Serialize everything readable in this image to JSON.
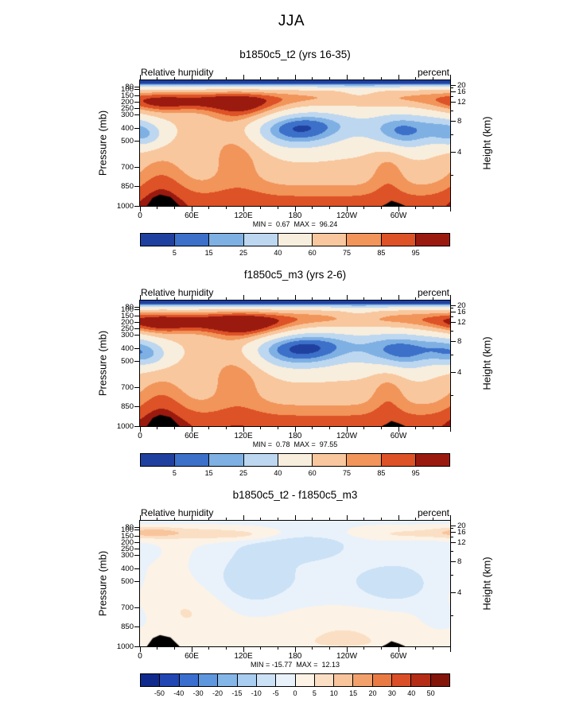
{
  "chart_data": {
    "type": "heatmap",
    "title": "JJA",
    "variable": "Relative humidity",
    "units": "percent",
    "representation": "gaussian-blob approximation of filled contour fields",
    "axes": {
      "x_range": [
        0,
        360
      ],
      "x_ticks": [
        {
          "lon": 0,
          "label": "0"
        },
        {
          "lon": 60,
          "label": "60E"
        },
        {
          "lon": 120,
          "label": "120E"
        },
        {
          "lon": 180,
          "label": "180"
        },
        {
          "lon": 240,
          "label": "120W"
        },
        {
          "lon": 300,
          "label": "60W"
        }
      ],
      "x_minor_step": 20,
      "y_left_label": "Pressure (mb)",
      "y_left_ticks": [
        80,
        100,
        150,
        200,
        250,
        300,
        400,
        500,
        700,
        850,
        1000
      ],
      "y_right_label": "Height (km)",
      "y_right_ticks": [
        20,
        16,
        12,
        8,
        4
      ],
      "y_right_minor_ticks": [
        18,
        14,
        10,
        6,
        2
      ],
      "pressure_range_mb": [
        30,
        1000
      ],
      "scale_height_km": 7.5,
      "grid": false
    },
    "panels": [
      {
        "id": "b1850c5_t2",
        "title": "b1850c5_t2 (yrs 16-35)",
        "left_header": "Relative humidity",
        "right_header": "percent",
        "min": 0.67,
        "max": 96.24,
        "stats_text": "MIN =  0.67  MAX =  96.24",
        "colorbar": {
          "labels": [
            5,
            15,
            25,
            40,
            60,
            75,
            85,
            95
          ],
          "colors": [
            "#20409f",
            "#3c70c9",
            "#7fb0e3",
            "#bdd7f0",
            "#f8eedd",
            "#f8c79e",
            "#f1955a",
            "#dd5226",
            "#9a1a10"
          ]
        },
        "field": {
          "base": 62,
          "blobs": [
            {
              "x": 180,
              "p": 15,
              "sx": 9999,
              "sp": 40,
              "a": -95
            },
            {
              "x": 240,
              "p": 165,
              "sx": 130,
              "sp": 38,
              "a": 12
            },
            {
              "x": 70,
              "p": 195,
              "sx": 70,
              "sp": 50,
              "a": 30
            },
            {
              "x": 125,
              "p": 265,
              "sx": 33,
              "sp": 70,
              "a": 24
            },
            {
              "x": 20,
              "p": 230,
              "sx": 25,
              "sp": 60,
              "a": 14
            },
            {
              "x": 183,
              "p": 420,
              "sx": 42,
              "sp": 105,
              "a": -50
            },
            {
              "x": 212,
              "p": 360,
              "sx": 55,
              "sp": 70,
              "a": -14
            },
            {
              "x": 302,
              "p": 430,
              "sx": 26,
              "sp": 105,
              "a": -46
            },
            {
              "x": 350,
              "p": 400,
              "sx": 22,
              "sp": 85,
              "a": -26
            },
            {
              "x": 8,
              "p": 460,
              "sx": 16,
              "sp": 70,
              "a": -24
            },
            {
              "x": 180,
              "p": 1030,
              "sx": 9999,
              "sp": 145,
              "a": 30
            },
            {
              "x": 25,
              "p": 800,
              "sx": 22,
              "sp": 170,
              "a": 18
            },
            {
              "x": 113,
              "p": 560,
              "sx": 24,
              "sp": 220,
              "a": 20
            },
            {
              "x": 288,
              "p": 700,
              "sx": 15,
              "sp": 160,
              "a": 16
            },
            {
              "x": 255,
              "p": 140,
              "sx": 18,
              "sp": 30,
              "a": -12
            }
          ]
        },
        "topography": [
          {
            "from": 8,
            "to": 46,
            "top_p": 912
          },
          {
            "from": 281,
            "to": 308,
            "top_p": 960
          }
        ]
      },
      {
        "id": "f1850c5_m3",
        "title": "f1850c5_m3 (yrs 2-6)",
        "left_header": "Relative humidity",
        "right_header": "percent",
        "min": 0.78,
        "max": 97.55,
        "stats_text": "MIN =  0.78  MAX =  97.55",
        "colorbar": {
          "labels": [
            5,
            15,
            25,
            40,
            60,
            75,
            85,
            95
          ],
          "colors": [
            "#20409f",
            "#3c70c9",
            "#7fb0e3",
            "#bdd7f0",
            "#f8eedd",
            "#f8c79e",
            "#f1955a",
            "#dd5226",
            "#9a1a10"
          ]
        },
        "field": {
          "base": 62,
          "blobs": [
            {
              "x": 180,
              "p": 15,
              "sx": 9999,
              "sp": 40,
              "a": -95
            },
            {
              "x": 235,
              "p": 165,
              "sx": 130,
              "sp": 38,
              "a": 13
            },
            {
              "x": 65,
              "p": 200,
              "sx": 85,
              "sp": 52,
              "a": 32
            },
            {
              "x": 130,
              "p": 255,
              "sx": 35,
              "sp": 70,
              "a": 26
            },
            {
              "x": 20,
              "p": 230,
              "sx": 25,
              "sp": 60,
              "a": 15
            },
            {
              "x": 185,
              "p": 420,
              "sx": 46,
              "sp": 105,
              "a": -52
            },
            {
              "x": 215,
              "p": 360,
              "sx": 55,
              "sp": 70,
              "a": -15
            },
            {
              "x": 300,
              "p": 430,
              "sx": 28,
              "sp": 110,
              "a": -48
            },
            {
              "x": 350,
              "p": 400,
              "sx": 22,
              "sp": 85,
              "a": -28
            },
            {
              "x": 12,
              "p": 455,
              "sx": 18,
              "sp": 75,
              "a": -26
            },
            {
              "x": 180,
              "p": 1030,
              "sx": 9999,
              "sp": 145,
              "a": 31
            },
            {
              "x": 25,
              "p": 800,
              "sx": 22,
              "sp": 170,
              "a": 18
            },
            {
              "x": 113,
              "p": 560,
              "sx": 24,
              "sp": 220,
              "a": 21
            },
            {
              "x": 288,
              "p": 700,
              "sx": 15,
              "sp": 160,
              "a": 17
            },
            {
              "x": 255,
              "p": 140,
              "sx": 18,
              "sp": 30,
              "a": -10
            }
          ]
        },
        "topography": [
          {
            "from": 8,
            "to": 46,
            "top_p": 912
          },
          {
            "from": 281,
            "to": 308,
            "top_p": 960
          }
        ]
      },
      {
        "id": "difference",
        "title": "b1850c5_t2 - f1850c5_m3",
        "left_header": "Relative humidity",
        "right_header": "percent",
        "min": -15.77,
        "max": 12.13,
        "stats_text": "MIN = -15.77  MAX =  12.13",
        "colorbar": {
          "labels": [
            -50,
            -40,
            -30,
            -20,
            -15,
            -10,
            -5,
            0,
            5,
            10,
            15,
            20,
            30,
            40,
            50
          ],
          "colors": [
            "#112a8e",
            "#2246b4",
            "#3a6fd0",
            "#5e97de",
            "#85b6e8",
            "#a9cdf0",
            "#cbe1f6",
            "#e9f2fb",
            "#fcf2e5",
            "#fbdfc4",
            "#f8c49c",
            "#f3a16c",
            "#ea7a44",
            "#da4f28",
            "#b52d16",
            "#83150b"
          ]
        },
        "field": {
          "base": 0.8,
          "blobs": [
            {
              "x": 180,
              "p": 15,
              "sx": 9999,
              "sp": 25,
              "a": -5
            },
            {
              "x": 55,
              "p": 130,
              "sx": 85,
              "sp": 35,
              "a": 7
            },
            {
              "x": 15,
              "p": 115,
              "sx": 20,
              "sp": 25,
              "a": 6
            },
            {
              "x": 130,
              "p": 150,
              "sx": 30,
              "sp": 35,
              "a": 4
            },
            {
              "x": 310,
              "p": 135,
              "sx": 55,
              "sp": 28,
              "a": 3
            },
            {
              "x": 128,
              "p": 480,
              "sx": 32,
              "sp": 170,
              "a": -8
            },
            {
              "x": 185,
              "p": 210,
              "sx": 45,
              "sp": 85,
              "a": -9
            },
            {
              "x": 215,
              "p": 470,
              "sx": 75,
              "sp": 160,
              "a": -4
            },
            {
              "x": 298,
              "p": 520,
              "sx": 30,
              "sp": 110,
              "a": -8
            },
            {
              "x": 332,
              "p": 250,
              "sx": 28,
              "sp": 70,
              "a": -4
            },
            {
              "x": 352,
              "p": 800,
              "sx": 22,
              "sp": 100,
              "a": -4
            },
            {
              "x": 180,
              "p": 1010,
              "sx": 9999,
              "sp": 110,
              "a": 3.5
            },
            {
              "x": 55,
              "p": 720,
              "sx": 38,
              "sp": 130,
              "a": 4.5
            },
            {
              "x": 235,
              "p": 830,
              "sx": 55,
              "sp": 100,
              "a": 3
            }
          ]
        },
        "topography": [
          {
            "from": 8,
            "to": 46,
            "top_p": 912
          },
          {
            "from": 281,
            "to": 308,
            "top_p": 960
          }
        ]
      }
    ]
  }
}
